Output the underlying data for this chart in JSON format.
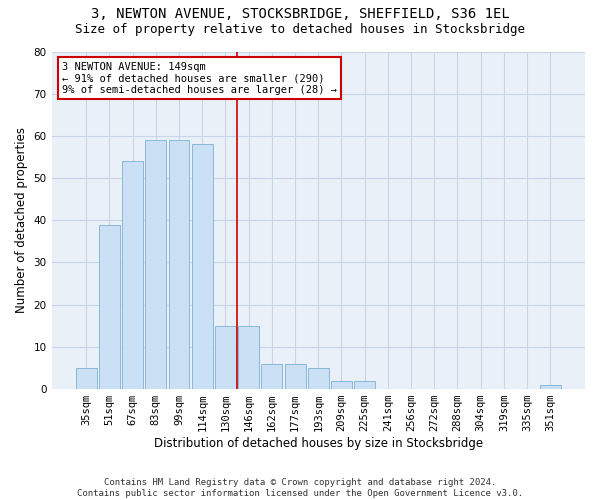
{
  "title1": "3, NEWTON AVENUE, STOCKSBRIDGE, SHEFFIELD, S36 1EL",
  "title2": "Size of property relative to detached houses in Stocksbridge",
  "xlabel": "Distribution of detached houses by size in Stocksbridge",
  "ylabel": "Number of detached properties",
  "categories": [
    "35sqm",
    "51sqm",
    "67sqm",
    "83sqm",
    "99sqm",
    "114sqm",
    "130sqm",
    "146sqm",
    "162sqm",
    "177sqm",
    "193sqm",
    "209sqm",
    "225sqm",
    "241sqm",
    "256sqm",
    "272sqm",
    "288sqm",
    "304sqm",
    "319sqm",
    "335sqm",
    "351sqm"
  ],
  "values": [
    5,
    39,
    54,
    59,
    59,
    58,
    15,
    15,
    6,
    6,
    5,
    2,
    2,
    0,
    0,
    0,
    0,
    0,
    0,
    0,
    1
  ],
  "bar_color": "#cce0f5",
  "bar_edge_color": "#89b8d8",
  "vline_color": "#cc0000",
  "annotation_line1": "3 NEWTON AVENUE: 149sqm",
  "annotation_line2": "← 91% of detached houses are smaller (290)",
  "annotation_line3": "9% of semi-detached houses are larger (28) →",
  "annotation_box_color": "#ffffff",
  "annotation_box_edge_color": "#cc0000",
  "ylim": [
    0,
    80
  ],
  "yticks": [
    0,
    10,
    20,
    30,
    40,
    50,
    60,
    70,
    80
  ],
  "grid_color": "#c8d4e8",
  "bg_color": "#eaf0f8",
  "footer": "Contains HM Land Registry data © Crown copyright and database right 2024.\nContains public sector information licensed under the Open Government Licence v3.0.",
  "title1_fontsize": 10,
  "title2_fontsize": 9,
  "xlabel_fontsize": 8.5,
  "ylabel_fontsize": 8.5,
  "tick_fontsize": 7.5,
  "footer_fontsize": 6.5,
  "annot_fontsize": 7.5
}
